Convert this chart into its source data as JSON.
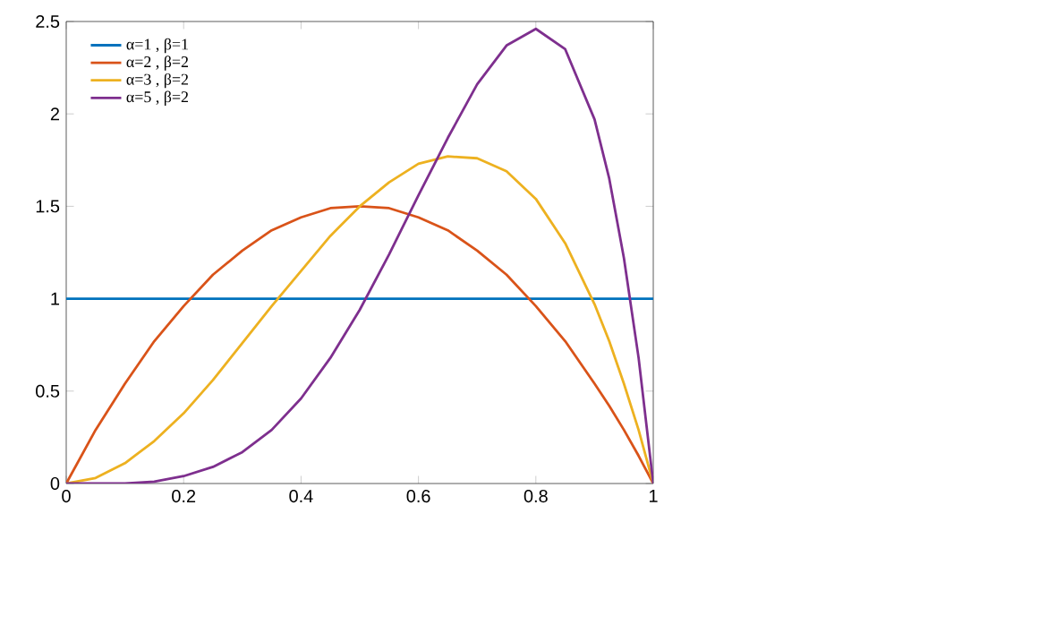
{
  "chart_data": {
    "type": "line",
    "x": [
      0,
      0.05,
      0.1,
      0.15,
      0.2,
      0.25,
      0.3,
      0.35,
      0.4,
      0.45,
      0.5,
      0.55,
      0.6,
      0.65,
      0.7,
      0.75,
      0.8,
      0.85,
      0.9,
      0.925,
      0.95,
      0.975,
      1
    ],
    "series": [
      {
        "name": "α=1 , β=1",
        "color": "#0072bd",
        "values": [
          1,
          1,
          1,
          1,
          1,
          1,
          1,
          1,
          1,
          1,
          1,
          1,
          1,
          1,
          1,
          1,
          1,
          1,
          1,
          1,
          1,
          1,
          1
        ]
      },
      {
        "name": "α=2 , β=2",
        "color": "#d95319",
        "values": [
          0,
          0.29,
          0.54,
          0.77,
          0.96,
          1.13,
          1.26,
          1.37,
          1.44,
          1.49,
          1.5,
          1.49,
          1.44,
          1.37,
          1.26,
          1.13,
          0.96,
          0.77,
          0.54,
          0.42,
          0.29,
          0.15,
          0
        ]
      },
      {
        "name": "α=3 , β=2",
        "color": "#edb120",
        "values": [
          0,
          0.03,
          0.11,
          0.23,
          0.38,
          0.56,
          0.76,
          0.96,
          1.15,
          1.34,
          1.5,
          1.63,
          1.73,
          1.77,
          1.76,
          1.69,
          1.54,
          1.3,
          0.97,
          0.77,
          0.54,
          0.29,
          0
        ]
      },
      {
        "name": "α=5 , β=2",
        "color": "#7e2f8e",
        "values": [
          0,
          0,
          0,
          0.01,
          0.04,
          0.09,
          0.17,
          0.29,
          0.46,
          0.68,
          0.94,
          1.24,
          1.56,
          1.87,
          2.16,
          2.37,
          2.46,
          2.35,
          1.97,
          1.65,
          1.22,
          0.68,
          0
        ]
      }
    ],
    "xlim": [
      0,
      1
    ],
    "xticks": [
      0,
      0.2,
      0.4,
      0.6,
      0.8,
      1
    ],
    "ylim": [
      0,
      2.5
    ],
    "yticks": [
      0,
      0.5,
      1,
      1.5,
      2,
      2.5
    ],
    "legend": "top left",
    "marker": "none",
    "line_style": "solid"
  }
}
